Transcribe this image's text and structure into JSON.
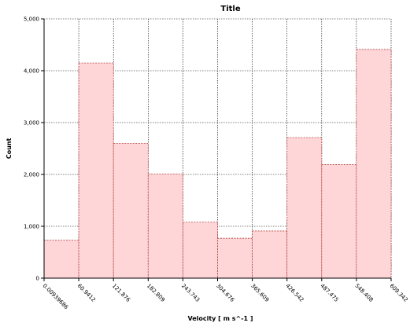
{
  "chart_data": {
    "type": "bar",
    "title": "Title",
    "xlabel": "Velocity [ m s^-1 ]",
    "ylabel": "Count",
    "bin_edges": [
      0.00939686,
      60.9412,
      121.876,
      182.809,
      243.743,
      304.676,
      365.609,
      426.542,
      487.475,
      548.408,
      609.342
    ],
    "x_tick_labels": [
      "0.00939686",
      "60.9412",
      "121.876",
      "182.809",
      "243.743",
      "304.676",
      "365.609",
      "426.542",
      "487.475",
      "548.408",
      "609.342"
    ],
    "values": [
      730,
      4150,
      2600,
      2010,
      1080,
      770,
      910,
      2710,
      2190,
      4410
    ],
    "ylim": [
      0,
      5000
    ],
    "y_ticks": [
      0,
      1000,
      2000,
      3000,
      4000,
      5000
    ],
    "y_tick_labels": [
      "0",
      "1,000",
      "2,000",
      "3,000",
      "4,000",
      "5,000"
    ],
    "grid": true,
    "colors": {
      "bar_fill": "#ffd6d8",
      "bar_edge": "#b04040"
    }
  }
}
